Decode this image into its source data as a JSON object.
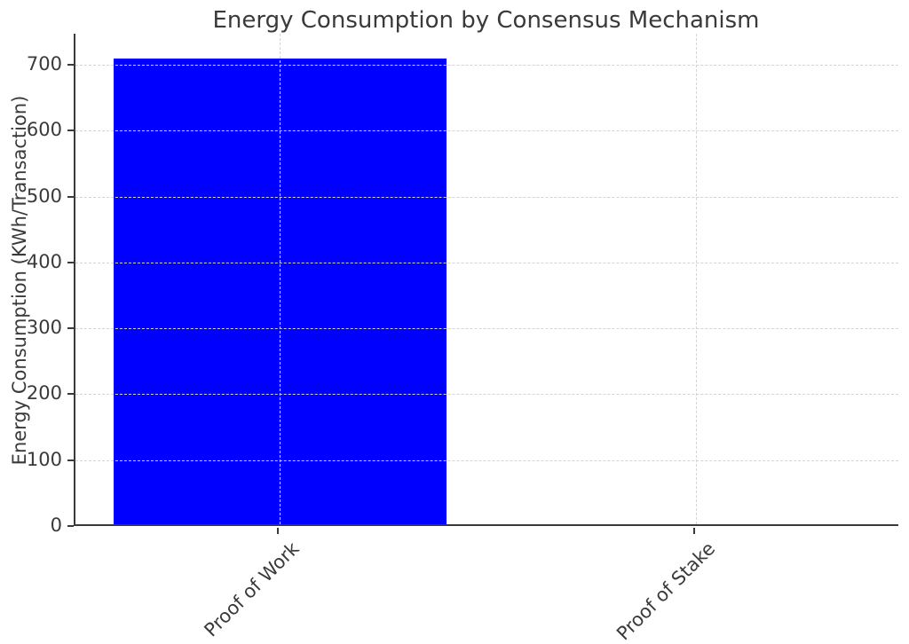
{
  "chart_data": {
    "type": "bar",
    "title": "Energy Consumption by Consensus Mechanism",
    "categories": [
      "Proof of Work",
      "Proof of Stake"
    ],
    "values": [
      707,
      0
    ],
    "xlabel": "",
    "ylabel": "Energy Consumption (KWh/Transaction)",
    "ylim": [
      0,
      747
    ],
    "yticks": [
      0,
      100,
      200,
      300,
      400,
      500,
      600,
      700
    ],
    "bar_color": "#0000ff",
    "grid": true,
    "grid_style": "dashed",
    "grid_color": "#d4d4d4",
    "legend": null,
    "xtick_rotation_deg": 45
  },
  "colors": {
    "text": "#3a3a3a",
    "spine": "#3a3a3a",
    "background": "#ffffff"
  }
}
